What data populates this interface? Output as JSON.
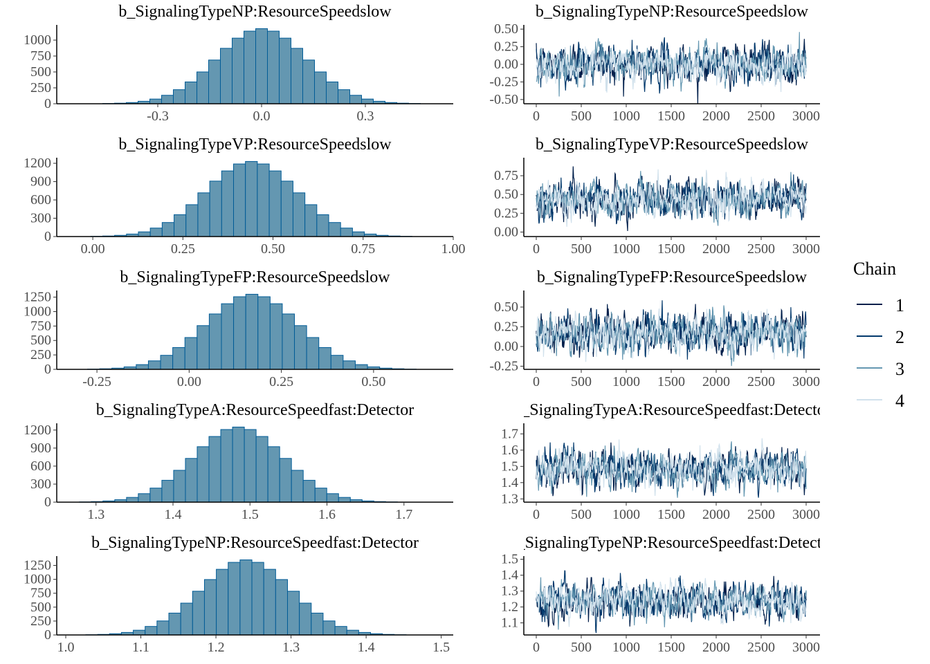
{
  "chart_data": {
    "type": "bar+line",
    "description_kind": "posterior histograms and MCMC trace plots",
    "colors": {
      "hist_fill": "#6497b1",
      "hist_outline": "#005b96",
      "chains": [
        "#011f4b",
        "#03396c",
        "#6497b1",
        "#d1e1ec"
      ],
      "tick_text": "#4d4d4d"
    },
    "legend": {
      "title": "Chain",
      "entries": [
        "1",
        "2",
        "3",
        "4"
      ],
      "placement": "right"
    },
    "panels": [
      {
        "title": "b_SignalingTypeNP:ResourceSpeedslow",
        "hist": {
          "xlim": [
            -0.592,
            0.554
          ],
          "xticks": [
            -0.3,
            0.0,
            0.3
          ],
          "xtick_labels": [
            "-0.3",
            "0.0",
            "0.3"
          ],
          "yticks": [
            0,
            250,
            500,
            750,
            1000
          ],
          "ytick_labels": [
            "0",
            "250",
            "500",
            "750",
            "1000"
          ],
          "bin_center": 0.0,
          "bin_width": 0.034,
          "counts": [
            4,
            9,
            19,
            39,
            74,
            133,
            221,
            343,
            500,
            687,
            871,
            1031,
            1141,
            1180,
            1141,
            1031,
            871,
            687,
            500,
            343,
            221,
            133,
            74,
            39,
            19,
            9,
            4
          ]
        },
        "trace": {
          "xlim": [
            0,
            3000
          ],
          "xticks": [
            0,
            500,
            1000,
            1500,
            2000,
            2500,
            3000
          ],
          "ylim": [
            -0.56,
            0.56
          ],
          "yticks": [
            -0.5,
            -0.25,
            0,
            0.25,
            0.5
          ],
          "ytick_labels": [
            "-0.50",
            "-0.25",
            "0.00",
            "0.25",
            "0.50"
          ],
          "chain_mean": 0.0,
          "chain_sd": 0.13
        }
      },
      {
        "title": "b_SignalingTypeVP:ResourceSpeedslow",
        "hist": {
          "xlim": [
            -0.1,
            1.0
          ],
          "xticks": [
            0,
            0.25,
            0.5,
            0.75,
            1.0
          ],
          "xtick_labels": [
            "0.00",
            "0.25",
            "0.50",
            "0.75",
            "1.00"
          ],
          "yticks": [
            0,
            300,
            600,
            900,
            1200
          ],
          "ytick_labels": [
            "0",
            "300",
            "600",
            "900",
            "1200"
          ],
          "bin_center": 0.44,
          "bin_width": 0.033,
          "counts": [
            4,
            9,
            20,
            41,
            77,
            139,
            230,
            358,
            522,
            716,
            908,
            1075,
            1189,
            1230,
            1189,
            1075,
            908,
            716,
            522,
            358,
            230,
            139,
            77,
            41,
            20,
            9,
            4
          ]
        },
        "trace": {
          "xlim": [
            0,
            3000
          ],
          "xticks": [
            0,
            500,
            1000,
            1500,
            2000,
            2500,
            3000
          ],
          "ylim": [
            -0.06,
            0.99
          ],
          "yticks": [
            0,
            0.25,
            0.5,
            0.75
          ],
          "ytick_labels": [
            "0.00",
            "0.25",
            "0.50",
            "0.75"
          ],
          "chain_mean": 0.44,
          "chain_sd": 0.12
        }
      },
      {
        "title": "b_SignalingTypeFP:ResourceSpeedslow",
        "hist": {
          "xlim": [
            -0.359,
            0.716
          ],
          "xticks": [
            -0.25,
            0,
            0.25,
            0.5
          ],
          "xtick_labels": [
            "-0.25",
            "0.00",
            "0.25",
            "0.50"
          ],
          "yticks": [
            0,
            250,
            500,
            750,
            1000,
            1250
          ],
          "ytick_labels": [
            "0",
            "250",
            "500",
            "750",
            "1000",
            "1250"
          ],
          "bin_center": 0.17,
          "bin_width": 0.033,
          "counts": [
            4,
            10,
            21,
            43,
            82,
            147,
            243,
            378,
            551,
            757,
            959,
            1136,
            1257,
            1300,
            1257,
            1136,
            959,
            757,
            551,
            378,
            243,
            147,
            82,
            43,
            21,
            10,
            4
          ]
        },
        "trace": {
          "xlim": [
            0,
            3000
          ],
          "xticks": [
            0,
            500,
            1000,
            1500,
            2000,
            2500,
            3000
          ],
          "ylim": [
            -0.29,
            0.71
          ],
          "yticks": [
            -0.25,
            0,
            0.25,
            0.5
          ],
          "ytick_labels": [
            "-0.25",
            "0.00",
            "0.25",
            "0.50"
          ],
          "chain_mean": 0.17,
          "chain_sd": 0.12
        }
      },
      {
        "title": "b_SignalingTypeA:ResourceSpeedfast:Detector",
        "hist": {
          "xlim": [
            1.249,
            1.764
          ],
          "xticks": [
            1.3,
            1.4,
            1.5,
            1.6,
            1.7
          ],
          "xtick_labels": [
            "1.3",
            "1.4",
            "1.5",
            "1.6",
            "1.7"
          ],
          "yticks": [
            0,
            300,
            600,
            900,
            1200
          ],
          "ytick_labels": [
            "0",
            "300",
            "600",
            "900",
            "1200"
          ],
          "bin_center": 1.485,
          "bin_width": 0.0153,
          "counts": [
            4,
            9,
            20,
            41,
            79,
            141,
            234,
            364,
            530,
            728,
            923,
            1093,
            1209,
            1250,
            1209,
            1093,
            923,
            728,
            530,
            364,
            234,
            141,
            79,
            41,
            20,
            9,
            4
          ]
        },
        "trace": {
          "xlim": [
            0,
            3000
          ],
          "xticks": [
            0,
            500,
            1000,
            1500,
            2000,
            2500,
            3000
          ],
          "ylim": [
            1.28,
            1.765
          ],
          "yticks": [
            1.3,
            1.4,
            1.5,
            1.6,
            1.7
          ],
          "ytick_labels": [
            "1.3",
            "1.4",
            "1.5",
            "1.6",
            "1.7"
          ],
          "chain_mean": 1.485,
          "chain_sd": 0.055
        }
      },
      {
        "title": "b_SignalingTypeNP:ResourceSpeedfast:Detector",
        "hist": {
          "xlim": [
            0.988,
            1.516
          ],
          "xticks": [
            1.0,
            1.1,
            1.2,
            1.3,
            1.4,
            1.5
          ],
          "xtick_labels": [
            "1.0",
            "1.1",
            "1.2",
            "1.3",
            "1.4",
            "1.5"
          ],
          "yticks": [
            0,
            250,
            500,
            750,
            1000,
            1250
          ],
          "ytick_labels": [
            "0",
            "250",
            "500",
            "750",
            "1000",
            "1250"
          ],
          "bin_center": 1.24,
          "bin_width": 0.0158,
          "counts": [
            4,
            10,
            22,
            45,
            85,
            153,
            252,
            393,
            572,
            786,
            996,
            1180,
            1305,
            1350,
            1305,
            1180,
            996,
            786,
            572,
            393,
            252,
            153,
            85,
            45,
            22,
            10,
            4
          ]
        },
        "trace": {
          "xlim": [
            0,
            3000
          ],
          "xticks": [
            0,
            500,
            1000,
            1500,
            2000,
            2500,
            3000
          ],
          "ylim": [
            1.024,
            1.52
          ],
          "yticks": [
            1.1,
            1.2,
            1.3,
            1.4,
            1.5
          ],
          "ytick_labels": [
            "1.1",
            "1.2",
            "1.3",
            "1.4",
            "1.5"
          ],
          "chain_mean": 1.24,
          "chain_sd": 0.055
        }
      }
    ]
  }
}
